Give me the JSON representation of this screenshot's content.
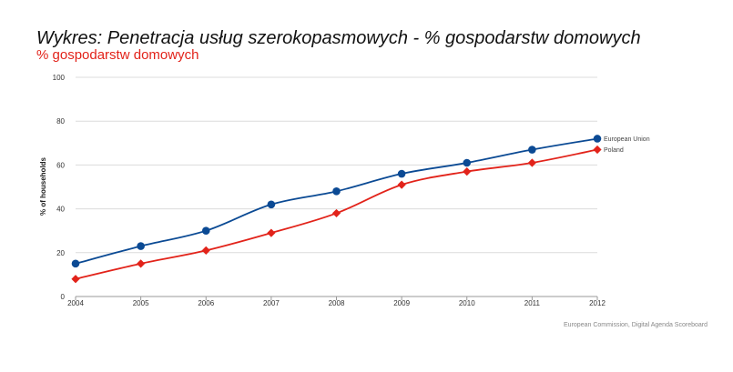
{
  "header": {
    "title": "Wykres: Penetracja usług szerokopasmowych - % gospodarstw domowych",
    "subtitle": "% gospodarstw domowych"
  },
  "source": "European Commission, Digital Agenda Scoreboard",
  "chart_data": {
    "type": "line",
    "title": "Wykres: Penetracja usług szerokopasmowych - % gospodarstw domowych",
    "subtitle": "% gospodarstw domowych",
    "xlabel": "",
    "ylabel": "% of households",
    "categories": [
      "2004",
      "2005",
      "2006",
      "2007",
      "2008",
      "2009",
      "2010",
      "2011",
      "2012"
    ],
    "ylim": [
      0,
      100
    ],
    "yticks": [
      0,
      20,
      40,
      60,
      80,
      100
    ],
    "grid": true,
    "legend": "right end of lines",
    "series": [
      {
        "name": "European Union",
        "color": "#0b4a94",
        "marker": "circle",
        "values": [
          15,
          23,
          30,
          42,
          48,
          56,
          61,
          67,
          72
        ]
      },
      {
        "name": "Poland",
        "color": "#e2231a",
        "marker": "diamond",
        "values": [
          8,
          15,
          21,
          29,
          38,
          51,
          57,
          61,
          67
        ]
      }
    ]
  }
}
